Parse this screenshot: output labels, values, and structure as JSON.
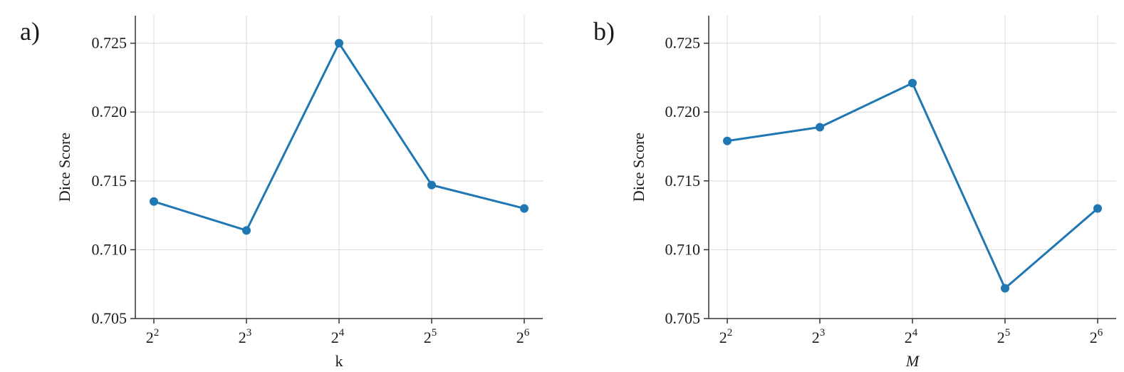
{
  "colors": {
    "series": "#1f77b4",
    "grid": "#d9d9d9",
    "axis": "#333333"
  },
  "chart_data": [
    {
      "type": "line",
      "panel_label": "a)",
      "xlabel": "k",
      "xlabel_italic": false,
      "ylabel": "Dice Score",
      "x_base": "2",
      "x_exponents": [
        "2",
        "3",
        "4",
        "5",
        "6"
      ],
      "x": [
        4,
        8,
        16,
        32,
        64
      ],
      "x_scale": "log2",
      "ylim": [
        0.705,
        0.727
      ],
      "yticks": [
        "0.705",
        "0.710",
        "0.715",
        "0.720",
        "0.725"
      ],
      "grid": true,
      "series": [
        {
          "values": [
            0.7135,
            0.7114,
            0.725,
            0.7147,
            0.713
          ]
        }
      ]
    },
    {
      "type": "line",
      "panel_label": "b)",
      "xlabel": "M",
      "xlabel_italic": true,
      "ylabel": "Dice Score",
      "x_base": "2",
      "x_exponents": [
        "2",
        "3",
        "4",
        "5",
        "6"
      ],
      "x": [
        4,
        8,
        16,
        32,
        64
      ],
      "x_scale": "log2",
      "ylim": [
        0.705,
        0.727
      ],
      "yticks": [
        "0.705",
        "0.710",
        "0.715",
        "0.720",
        "0.725"
      ],
      "grid": true,
      "series": [
        {
          "values": [
            0.7179,
            0.7189,
            0.7221,
            0.7072,
            0.713
          ]
        }
      ]
    }
  ]
}
